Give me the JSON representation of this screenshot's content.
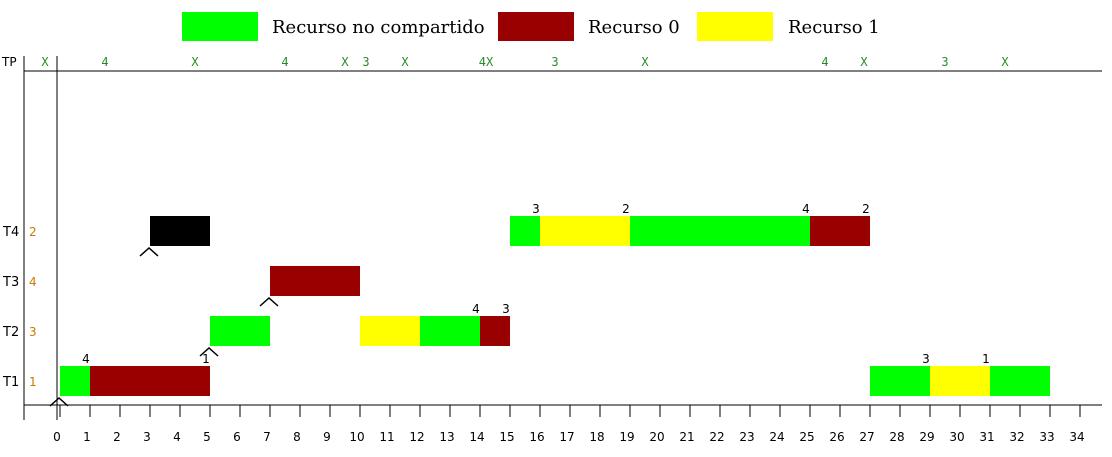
{
  "legend": [
    {
      "label": "Recurso no compartido",
      "color": "#00ff00"
    },
    {
      "label": "Recurso 0",
      "color": "#990000"
    },
    {
      "label": "Recurso 1",
      "color": "#ffff00"
    }
  ],
  "colors": {
    "green": "#00ff00",
    "red": "#990000",
    "yellow": "#ffff00",
    "black": "#000000",
    "tp_mark": "#2a8a2a",
    "priority": "#cc7a00"
  },
  "tp_label": "TP",
  "x_ticks": [
    "0",
    "1",
    "2",
    "3",
    "4",
    "5",
    "6",
    "7",
    "8",
    "9",
    "10",
    "11",
    "12",
    "13",
    "14",
    "15",
    "16",
    "17",
    "18",
    "19",
    "20",
    "21",
    "22",
    "23",
    "24",
    "25",
    "26",
    "27",
    "28",
    "29",
    "30",
    "31",
    "32",
    "33",
    "34"
  ],
  "tp_marks": [
    {
      "t": -0.5,
      "text": "X"
    },
    {
      "t": 1.5,
      "text": "4"
    },
    {
      "t": 4.5,
      "text": "X"
    },
    {
      "t": 7.5,
      "text": "4"
    },
    {
      "t": 9.5,
      "text": "X"
    },
    {
      "t": 10.2,
      "text": "3"
    },
    {
      "t": 11.5,
      "text": "X"
    },
    {
      "t": 14.2,
      "text": "4X"
    },
    {
      "t": 16.5,
      "text": "3"
    },
    {
      "t": 19.5,
      "text": "X"
    },
    {
      "t": 25.5,
      "text": "4"
    },
    {
      "t": 26.8,
      "text": "X"
    },
    {
      "t": 29.5,
      "text": "3"
    },
    {
      "t": 31.5,
      "text": "X"
    }
  ],
  "tasks": [
    {
      "name": "T4",
      "priority": "2",
      "row": 3,
      "arrivals": [
        3
      ],
      "segments": [
        {
          "start": 3,
          "end": 5,
          "color": "black"
        },
        {
          "start": 15,
          "end": 16,
          "color": "green"
        },
        {
          "start": 16,
          "end": 19,
          "color": "yellow"
        },
        {
          "start": 19,
          "end": 25,
          "color": "green"
        },
        {
          "start": 25,
          "end": 27,
          "color": "red"
        }
      ],
      "labels": [
        {
          "t": 16,
          "text": "3"
        },
        {
          "t": 19,
          "text": "2"
        },
        {
          "t": 25,
          "text": "4"
        },
        {
          "t": 27,
          "text": "2"
        }
      ]
    },
    {
      "name": "T3",
      "priority": "4",
      "row": 2,
      "arrivals": [
        7
      ],
      "segments": [
        {
          "start": 7,
          "end": 10,
          "color": "red"
        }
      ],
      "labels": []
    },
    {
      "name": "T2",
      "priority": "3",
      "row": 1,
      "arrivals": [
        5
      ],
      "segments": [
        {
          "start": 5,
          "end": 7,
          "color": "green"
        },
        {
          "start": 10,
          "end": 12,
          "color": "yellow"
        },
        {
          "start": 12,
          "end": 14,
          "color": "green"
        },
        {
          "start": 14,
          "end": 15,
          "color": "red"
        }
      ],
      "labels": [
        {
          "t": 14,
          "text": "4"
        },
        {
          "t": 15,
          "text": "3"
        }
      ]
    },
    {
      "name": "T1",
      "priority": "1",
      "row": 0,
      "arrivals": [
        0
      ],
      "segments": [
        {
          "start": 0,
          "end": 1,
          "color": "green"
        },
        {
          "start": 1,
          "end": 5,
          "color": "red"
        },
        {
          "start": 27,
          "end": 29,
          "color": "green"
        },
        {
          "start": 29,
          "end": 31,
          "color": "yellow"
        },
        {
          "start": 31,
          "end": 33,
          "color": "green"
        }
      ],
      "labels": [
        {
          "t": 1,
          "text": "4"
        },
        {
          "t": 5,
          "text": "1"
        },
        {
          "t": 29,
          "text": "3"
        },
        {
          "t": 31,
          "text": "1"
        }
      ]
    }
  ]
}
